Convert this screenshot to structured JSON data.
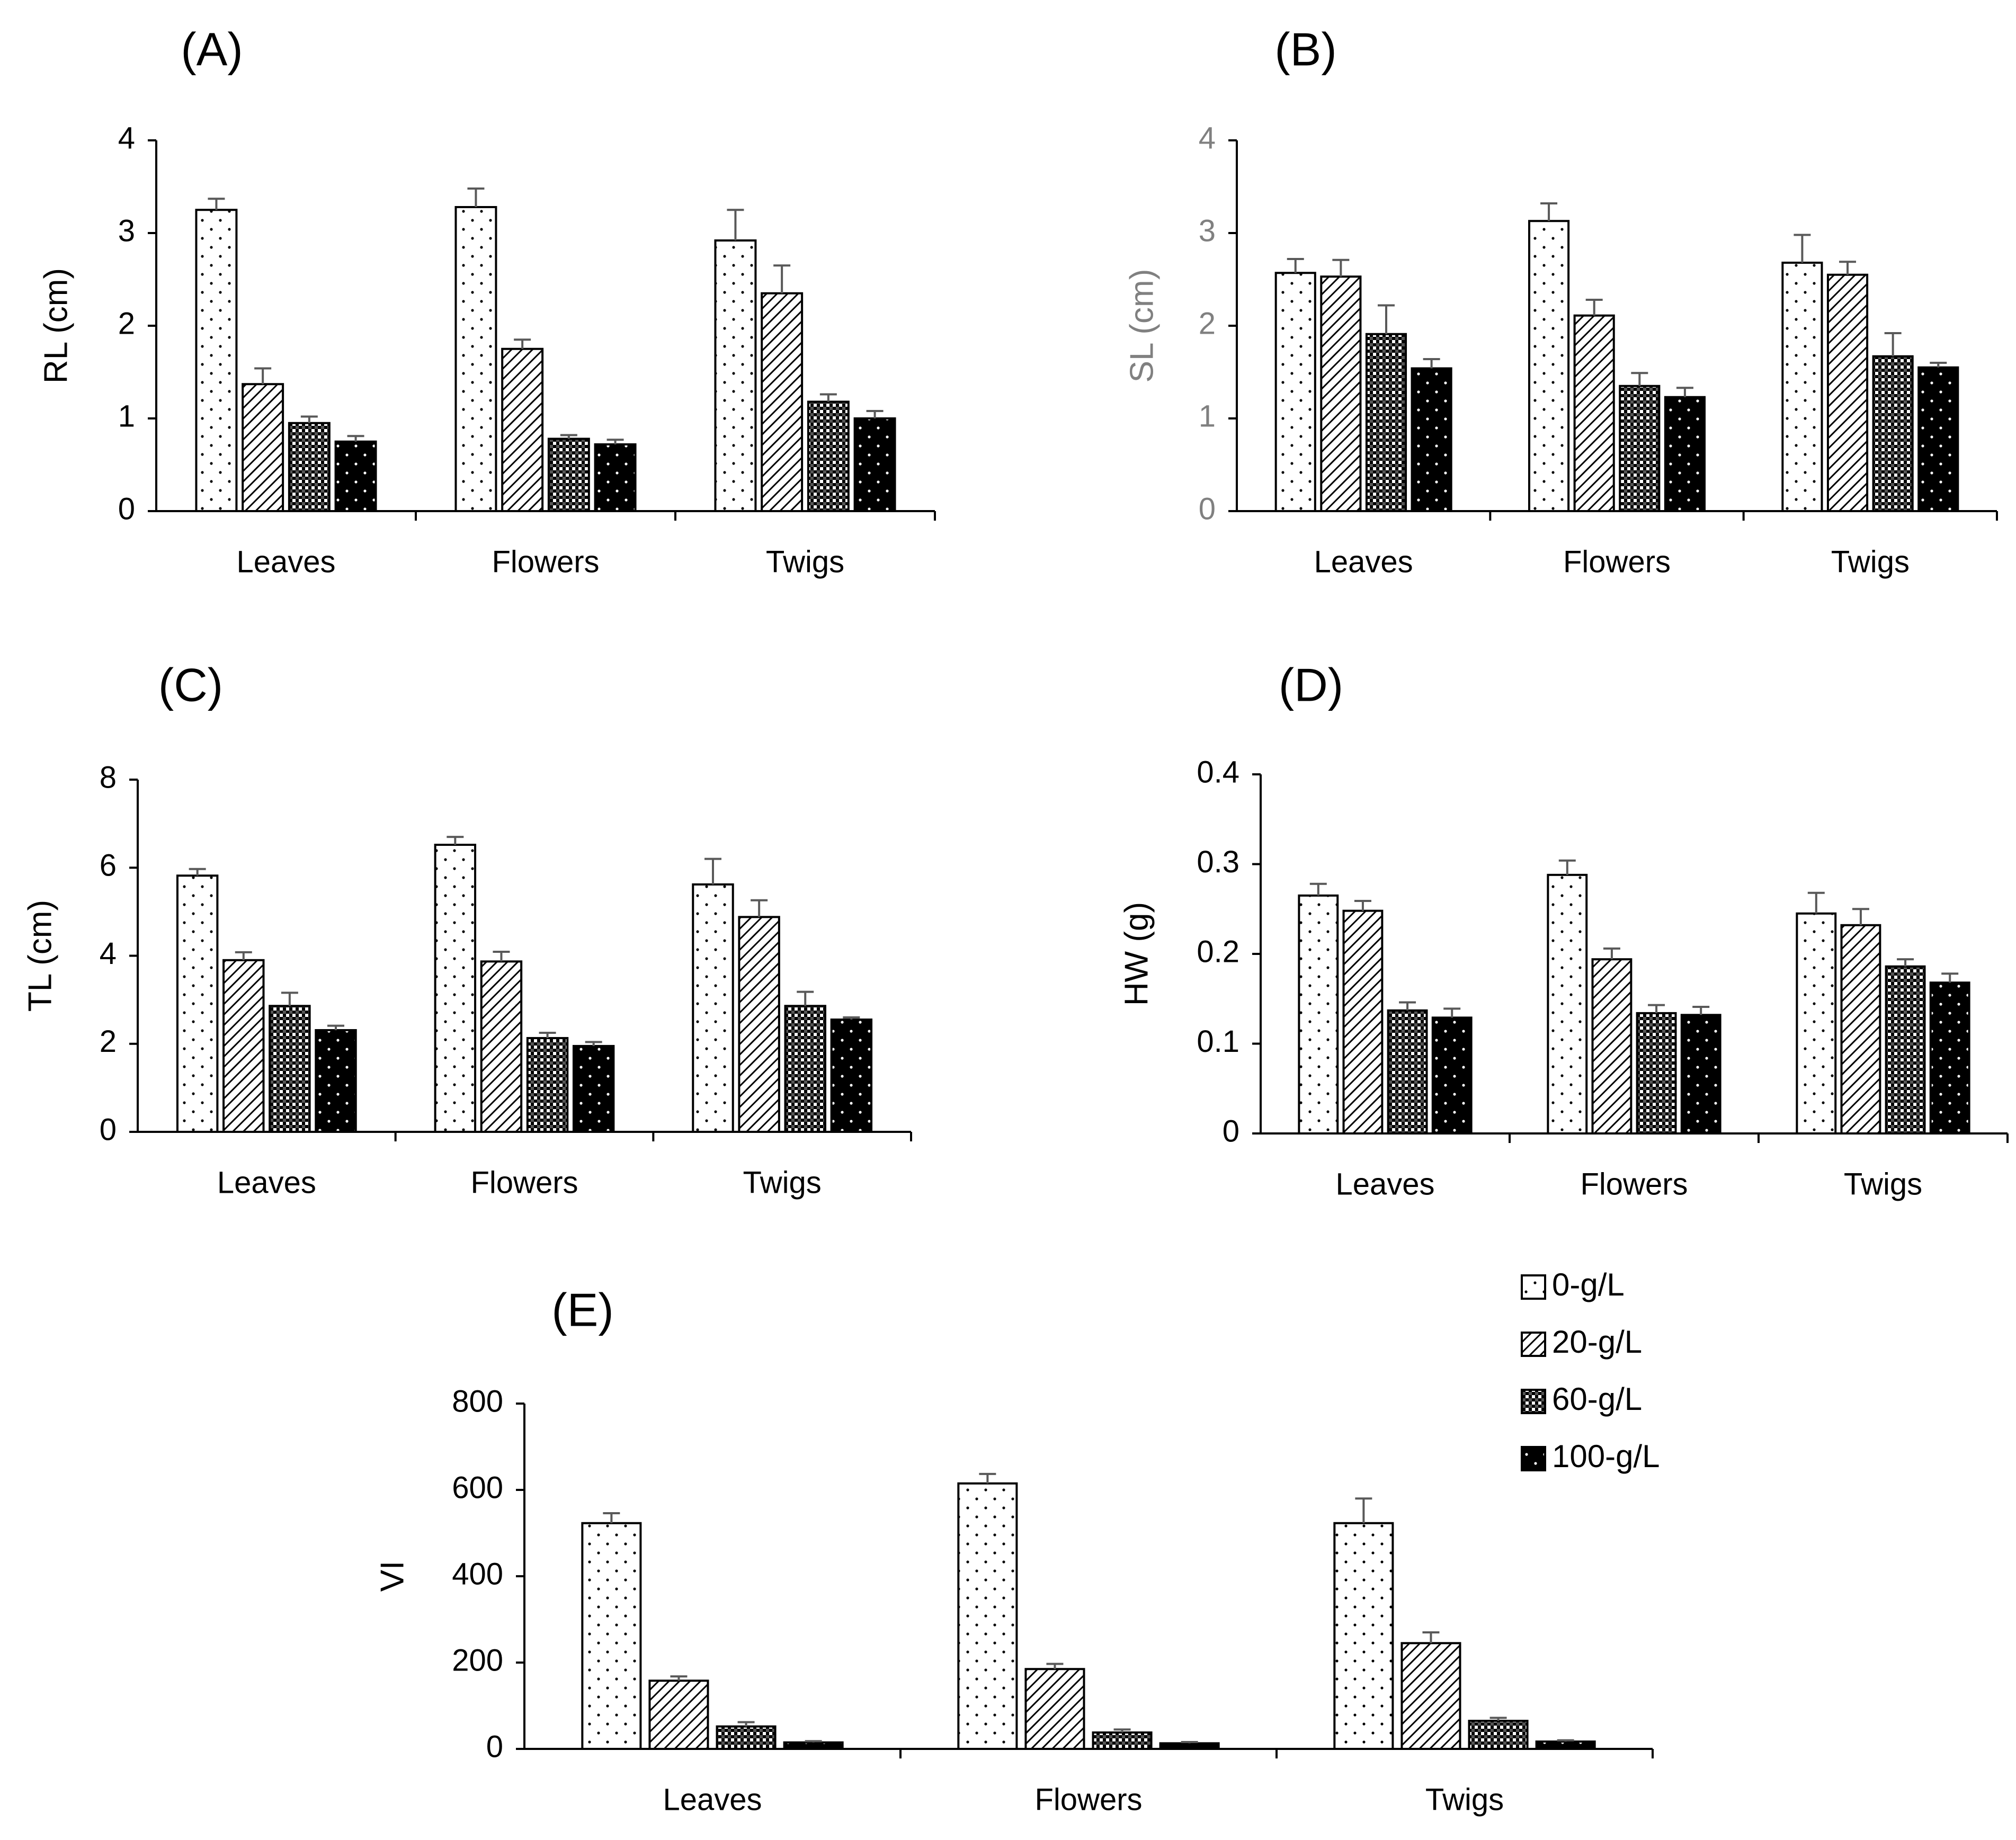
{
  "colors": {
    "axis": "#000000",
    "error_bar": "#595959",
    "bar_stroke": "#000000",
    "panel_b_axis_text": "#808080"
  },
  "legend": {
    "placement": "right of panel E",
    "items": [
      {
        "label": "0-g/L",
        "pattern": "pattern-dots-sparse"
      },
      {
        "label": "20-g/L",
        "pattern": "pattern-diagonal-hatch"
      },
      {
        "label": "60-g/L",
        "pattern": "pattern-checker"
      },
      {
        "label": "100-g/L",
        "pattern": "pattern-black-dots"
      }
    ]
  },
  "chart_data": [
    {
      "type": "bar",
      "panel": "(A)",
      "ylabel": "RL (cm)",
      "ylim": [
        0,
        4
      ],
      "yticks": [
        0,
        1,
        2,
        3,
        4
      ],
      "categories": [
        "Leaves",
        "Flowers",
        "Twigs"
      ],
      "series": [
        {
          "name": "0-g/L",
          "values": [
            3.25,
            3.28,
            2.92
          ],
          "errors": [
            0.12,
            0.2,
            0.33
          ]
        },
        {
          "name": "20-g/L",
          "values": [
            1.37,
            1.75,
            2.35
          ],
          "errors": [
            0.17,
            0.1,
            0.3
          ]
        },
        {
          "name": "60-g/L",
          "values": [
            0.95,
            0.78,
            1.18
          ],
          "errors": [
            0.07,
            0.04,
            0.08
          ]
        },
        {
          "name": "100-g/L",
          "values": [
            0.75,
            0.72,
            1.0
          ],
          "errors": [
            0.06,
            0.05,
            0.08
          ]
        }
      ]
    },
    {
      "type": "bar",
      "panel": "(B)",
      "ylabel": "SL (cm)",
      "ylim": [
        0,
        4
      ],
      "yticks": [
        0,
        1,
        2,
        3,
        4
      ],
      "categories": [
        "Leaves",
        "Flowers",
        "Twigs"
      ],
      "series": [
        {
          "name": "0-g/L",
          "values": [
            2.57,
            3.13,
            2.68
          ],
          "errors": [
            0.15,
            0.19,
            0.3
          ]
        },
        {
          "name": "20-g/L",
          "values": [
            2.53,
            2.11,
            2.55
          ],
          "errors": [
            0.18,
            0.17,
            0.14
          ]
        },
        {
          "name": "60-g/L",
          "values": [
            1.91,
            1.35,
            1.67
          ],
          "errors": [
            0.31,
            0.14,
            0.25
          ]
        },
        {
          "name": "100-g/L",
          "values": [
            1.54,
            1.23,
            1.55
          ],
          "errors": [
            0.1,
            0.1,
            0.05
          ]
        }
      ]
    },
    {
      "type": "bar",
      "panel": "(C)",
      "ylabel": "TL (cm)",
      "ylim": [
        0,
        8
      ],
      "yticks": [
        0,
        2,
        4,
        6,
        8
      ],
      "categories": [
        "Leaves",
        "Flowers",
        "Twigs"
      ],
      "series": [
        {
          "name": "0-g/L",
          "values": [
            5.82,
            6.52,
            5.62
          ],
          "errors": [
            0.15,
            0.18,
            0.58
          ]
        },
        {
          "name": "20-g/L",
          "values": [
            3.9,
            3.87,
            4.88
          ],
          "errors": [
            0.18,
            0.22,
            0.38
          ]
        },
        {
          "name": "60-g/L",
          "values": [
            2.86,
            2.13,
            2.86
          ],
          "errors": [
            0.3,
            0.12,
            0.32
          ]
        },
        {
          "name": "100-g/L",
          "values": [
            2.31,
            1.95,
            2.55
          ],
          "errors": [
            0.1,
            0.09,
            0.05
          ]
        }
      ]
    },
    {
      "type": "bar",
      "panel": "(D)",
      "ylabel": "HW (g)",
      "ylim": [
        0,
        0.4
      ],
      "yticks": [
        0,
        0.1,
        0.2,
        0.3,
        0.4
      ],
      "categories": [
        "Leaves",
        "Flowers",
        "Twigs"
      ],
      "series": [
        {
          "name": "0-g/L",
          "values": [
            0.265,
            0.288,
            0.245
          ],
          "errors": [
            0.013,
            0.016,
            0.023
          ]
        },
        {
          "name": "20-g/L",
          "values": [
            0.248,
            0.194,
            0.232
          ],
          "errors": [
            0.011,
            0.012,
            0.018
          ]
        },
        {
          "name": "60-g/L",
          "values": [
            0.137,
            0.134,
            0.186
          ],
          "errors": [
            0.009,
            0.009,
            0.008
          ]
        },
        {
          "name": "100-g/L",
          "values": [
            0.129,
            0.132,
            0.168
          ],
          "errors": [
            0.01,
            0.009,
            0.01
          ]
        }
      ]
    },
    {
      "type": "bar",
      "panel": "(E)",
      "ylabel": "VI",
      "ylim": [
        0,
        800
      ],
      "yticks": [
        0,
        200,
        400,
        600,
        800
      ],
      "categories": [
        "Leaves",
        "Flowers",
        "Twigs"
      ],
      "series": [
        {
          "name": "0-g/L",
          "values": [
            523,
            615,
            523
          ],
          "errors": [
            23,
            22,
            57
          ]
        },
        {
          "name": "20-g/L",
          "values": [
            158,
            185,
            245
          ],
          "errors": [
            10,
            12,
            25
          ]
        },
        {
          "name": "60-g/L",
          "values": [
            52,
            38,
            65
          ],
          "errors": [
            10,
            7,
            7
          ]
        },
        {
          "name": "100-g/L",
          "values": [
            15,
            13,
            17
          ],
          "errors": [
            3,
            3,
            3
          ]
        }
      ]
    }
  ]
}
